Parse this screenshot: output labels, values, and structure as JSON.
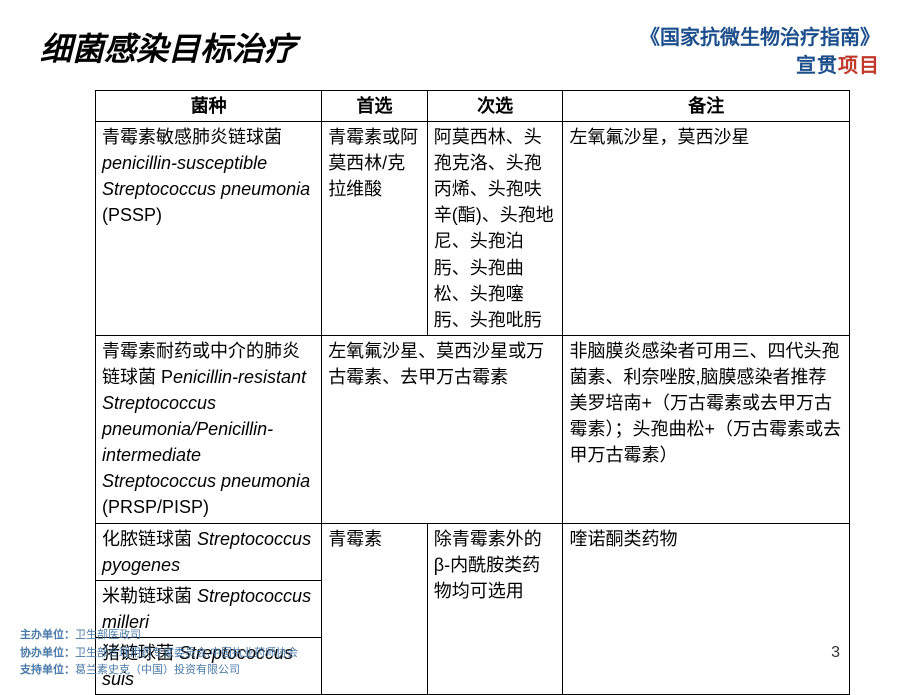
{
  "header": {
    "title": "细菌感染目标治疗",
    "subtitle_line1": "《国家抗微生物治疗指南》",
    "subtitle_line2a": "宣贯",
    "subtitle_line2b": "项目"
  },
  "table": {
    "headers": [
      "菌种",
      "首选",
      "次选",
      "备注"
    ],
    "rows": [
      {
        "species_cn": "青霉素敏感肺炎链球菌",
        "species_en_a": "penicillin-susceptible Streptococcus pneumonia",
        "species_code": "(PSSP)",
        "first": "青霉素或阿莫西林/克拉维酸",
        "second": "阿莫西林、头孢克洛、头孢丙烯、头孢呋辛(酯)、头孢地尼、头孢泊肟、头孢曲松、头孢噻肟、头孢吡肟",
        "note": "左氧氟沙星，莫西沙星"
      },
      {
        "species_cn": "青霉素耐药或中介的肺炎链球菌 P",
        "species_en_a": "enicillin-resistant Streptococcus pneumonia/Penicillin-intermediate Streptococcus pneumonia",
        "species_code": "(PRSP/PISP)",
        "first_merged": "左氧氟沙星、莫西沙星或万古霉素、去甲万古霉素",
        "note": "非脑膜炎感染者可用三、四代头孢菌素、利奈唑胺,脑膜感染者推荐美罗培南+（万古霉素或去甲万古霉素）；头孢曲松+（万古霉素或去甲万古霉素）"
      },
      {
        "species_cn": "化脓链球菌 ",
        "species_en": "Streptococcus pyogenes",
        "first": "青霉素",
        "second": "除青霉素外的β-内酰胺类药物均可选用",
        "note": "喹诺酮类药物"
      },
      {
        "species_cn": "米勒链球菌 ",
        "species_en": "Streptococcus milleri"
      },
      {
        "species_cn": "猪链球菌 ",
        "species_en": "Streptococcus suis"
      }
    ]
  },
  "footer": {
    "line1_label": "主办单位：",
    "line1_text": "卫生部医政司",
    "line2_label": "协办单位：",
    "line2_text": "卫生部合理用药专家委员会,中国执业药师协会",
    "line3_label": "支持单位：",
    "line3_text": "葛兰素史克（中国）投资有限公司"
  },
  "page_number": "3"
}
